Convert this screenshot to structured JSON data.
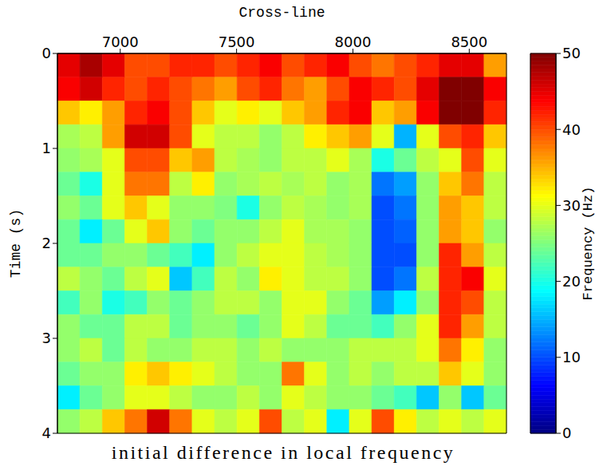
{
  "chart_data": {
    "type": "heatmap",
    "title": "initial difference in local frequency",
    "x_label": "Cross-line",
    "y_label": "Time (s)",
    "xlim": [
      6730,
      8660
    ],
    "xticks": [
      7000,
      7500,
      8000,
      8500
    ],
    "ylim": [
      0,
      4
    ],
    "yticks": [
      0,
      1,
      2,
      3,
      4
    ],
    "colorbar": {
      "label": "Frequency (Hz)",
      "range": [
        0,
        50
      ],
      "ticks": [
        0,
        10,
        20,
        30,
        40,
        50
      ]
    },
    "cells": {
      "x_edges": [
        6730,
        6826.5,
        6923,
        7019.5,
        7116,
        7212.5,
        7309,
        7405.5,
        7502,
        7598.5,
        7695,
        7791.5,
        7888,
        7984.5,
        8081,
        8177.5,
        8274,
        8370.5,
        8467,
        8563.5,
        8660
      ],
      "y_edges": [
        0,
        0.25,
        0.5,
        0.75,
        1,
        1.25,
        1.5,
        1.75,
        2,
        2.25,
        2.5,
        2.75,
        3,
        3.25,
        3.5,
        3.75,
        4
      ],
      "values": [
        [
          45,
          48,
          45,
          40,
          40,
          42,
          42,
          40,
          42,
          44,
          40,
          42,
          44,
          40,
          38,
          40,
          42,
          45,
          45,
          36
        ],
        [
          44,
          46,
          42,
          40,
          42,
          40,
          38,
          36,
          40,
          42,
          38,
          36,
          40,
          44,
          42,
          40,
          45,
          50,
          50,
          44
        ],
        [
          34,
          32,
          36,
          42,
          44,
          40,
          34,
          30,
          32,
          30,
          34,
          36,
          42,
          44,
          34,
          36,
          44,
          50,
          50,
          42
        ],
        [
          27,
          28,
          36,
          46,
          46,
          40,
          30,
          28,
          28,
          26,
          28,
          32,
          34,
          36,
          30,
          15,
          30,
          40,
          42,
          34
        ],
        [
          26,
          27,
          30,
          40,
          40,
          34,
          36,
          28,
          27,
          26,
          28,
          28,
          30,
          27,
          20,
          24,
          28,
          30,
          40,
          30
        ],
        [
          24,
          20,
          30,
          38,
          38,
          28,
          32,
          26,
          27,
          28,
          27,
          28,
          26,
          27,
          12,
          14,
          26,
          34,
          38,
          28
        ],
        [
          26,
          24,
          30,
          34,
          30,
          26,
          26,
          25,
          20,
          26,
          28,
          27,
          26,
          27,
          10,
          12,
          26,
          36,
          34,
          28
        ],
        [
          24,
          18,
          24,
          30,
          34,
          26,
          24,
          26,
          26,
          28,
          30,
          27,
          27,
          26,
          10,
          11,
          26,
          36,
          34,
          26
        ],
        [
          24,
          24,
          26,
          26,
          24,
          22,
          18,
          26,
          28,
          30,
          30,
          28,
          27,
          26,
          10,
          10,
          26,
          42,
          36,
          28
        ],
        [
          28,
          26,
          24,
          28,
          30,
          16,
          22,
          28,
          26,
          32,
          30,
          28,
          28,
          26,
          10,
          12,
          28,
          42,
          44,
          30
        ],
        [
          22,
          26,
          20,
          22,
          26,
          24,
          26,
          28,
          28,
          26,
          30,
          30,
          26,
          24,
          14,
          18,
          26,
          42,
          40,
          28
        ],
        [
          26,
          24,
          24,
          28,
          28,
          24,
          26,
          26,
          24,
          26,
          30,
          28,
          24,
          24,
          22,
          26,
          30,
          42,
          36,
          28
        ],
        [
          26,
          28,
          24,
          28,
          26,
          26,
          28,
          28,
          26,
          28,
          26,
          26,
          26,
          28,
          28,
          28,
          30,
          38,
          32,
          26
        ],
        [
          24,
          26,
          26,
          32,
          34,
          32,
          30,
          28,
          26,
          26,
          38,
          30,
          26,
          28,
          26,
          28,
          28,
          34,
          30,
          26
        ],
        [
          18,
          24,
          26,
          30,
          30,
          28,
          26,
          26,
          28,
          26,
          30,
          28,
          26,
          26,
          24,
          22,
          16,
          26,
          16,
          24
        ],
        [
          26,
          28,
          34,
          38,
          46,
          38,
          30,
          28,
          30,
          40,
          28,
          30,
          18,
          30,
          40,
          32,
          28,
          30,
          28,
          30
        ]
      ]
    }
  }
}
